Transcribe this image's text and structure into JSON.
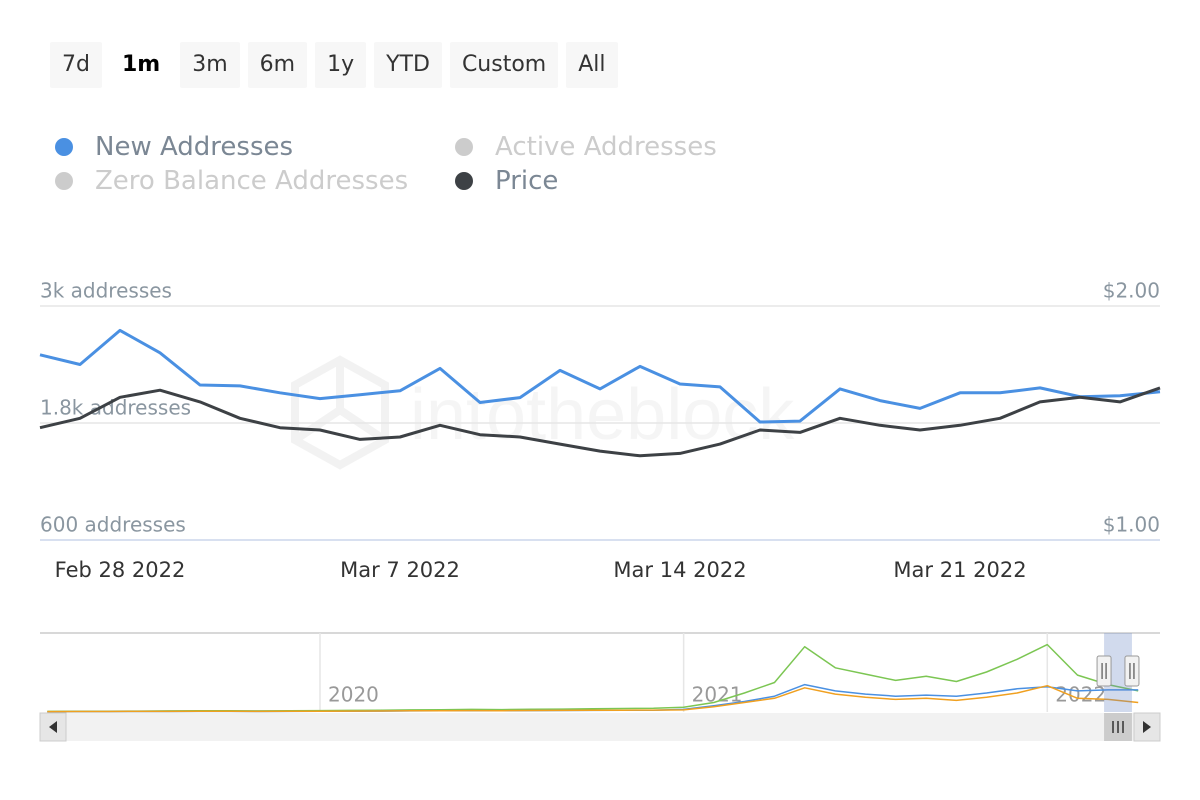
{
  "range_selector": {
    "buttons": [
      "7d",
      "1m",
      "3m",
      "6m",
      "1y",
      "YTD",
      "Custom",
      "All"
    ],
    "selected": 1
  },
  "chart_data": [
    {
      "type": "line",
      "watermark": "intotheblock",
      "x": [
        "2022-02-27",
        "2022-02-28",
        "2022-03-01",
        "2022-03-02",
        "2022-03-03",
        "2022-03-04",
        "2022-03-05",
        "2022-03-06",
        "2022-03-07",
        "2022-03-08",
        "2022-03-09",
        "2022-03-10",
        "2022-03-11",
        "2022-03-12",
        "2022-03-13",
        "2022-03-14",
        "2022-03-15",
        "2022-03-16",
        "2022-03-17",
        "2022-03-18",
        "2022-03-19",
        "2022-03-20",
        "2022-03-21",
        "2022-03-22",
        "2022-03-23",
        "2022-03-24",
        "2022-03-25",
        "2022-03-26",
        "2022-03-27"
      ],
      "xticks": [
        {
          "value": "2022-02-28",
          "label": "Feb 28 2022"
        },
        {
          "value": "2022-03-07",
          "label": "Mar 7 2022"
        },
        {
          "value": "2022-03-14",
          "label": "Mar 14 2022"
        },
        {
          "value": "2022-03-21",
          "label": "Mar 21 2022"
        }
      ],
      "ylim": [
        600,
        3000
      ],
      "yticks": [
        {
          "value": 600,
          "label": "600 addresses"
        },
        {
          "value": 1800,
          "label": "1.8k addresses"
        },
        {
          "value": 3000,
          "label": "3k addresses"
        }
      ],
      "y2lim": [
        1,
        2
      ],
      "y2ticks": [
        {
          "value": 1,
          "label": "$1.00"
        },
        {
          "value": 2,
          "label": "$2.00"
        }
      ],
      "grid": true,
      "legend": "top-left",
      "series": [
        {
          "name": "New Addresses",
          "color": "#4a90e2",
          "values": [
            2500,
            2400,
            2750,
            2520,
            2190,
            2180,
            2110,
            2050,
            2090,
            2130,
            2360,
            2010,
            2060,
            2340,
            2150,
            2380,
            2200,
            2170,
            1810,
            1820,
            2150,
            2030,
            1950,
            2110,
            2110,
            2160,
            2070,
            2080,
            2120
          ]
        },
        {
          "name": "Active Addresses",
          "visible": false
        },
        {
          "name": "Zero Balance Addresses",
          "visible": false
        },
        {
          "name": "Price",
          "color": "#3d4145",
          "axis": "y2",
          "values": [
            1.48,
            1.52,
            1.61,
            1.64,
            1.59,
            1.52,
            1.48,
            1.47,
            1.43,
            1.44,
            1.49,
            1.45,
            1.44,
            1.41,
            1.38,
            1.36,
            1.37,
            1.41,
            1.47,
            1.46,
            1.52,
            1.49,
            1.47,
            1.49,
            1.52,
            1.59,
            1.61,
            1.59,
            1.65
          ]
        }
      ]
    },
    {
      "type": "line",
      "x": [
        2019.25,
        2019.333,
        2019.417,
        2019.5,
        2019.583,
        2019.667,
        2019.75,
        2019.833,
        2019.917,
        2020,
        2020.083,
        2020.167,
        2020.25,
        2020.333,
        2020.417,
        2020.5,
        2020.583,
        2020.667,
        2020.75,
        2020.833,
        2020.917,
        2021,
        2021.083,
        2021.167,
        2021.25,
        2021.333,
        2021.417,
        2021.5,
        2021.583,
        2021.667,
        2021.75,
        2021.833,
        2021.917,
        2022,
        2022.083,
        2022.167,
        2022.25
      ],
      "xlim": [
        2019.23,
        2022.31
      ],
      "xticks": [
        2020,
        2021,
        2022
      ],
      "ylim": [
        0,
        7500
      ],
      "series": [
        {
          "color": "#7cc653",
          "values": [
            60,
            70,
            80,
            90,
            100,
            110,
            120,
            100,
            110,
            130,
            150,
            170,
            200,
            220,
            250,
            230,
            260,
            280,
            300,
            330,
            350,
            450,
            900,
            1800,
            2800,
            6200,
            4200,
            3600,
            3000,
            3400,
            2900,
            3800,
            5000,
            6400,
            3500,
            2600,
            2000
          ]
        },
        {
          "color": "#4a90e2",
          "values": [
            30,
            35,
            40,
            45,
            50,
            55,
            60,
            50,
            55,
            65,
            75,
            85,
            100,
            110,
            120,
            115,
            130,
            140,
            150,
            165,
            175,
            250,
            600,
            1000,
            1500,
            2600,
            2000,
            1700,
            1500,
            1600,
            1500,
            1800,
            2200,
            2400,
            2000,
            2100,
            2100
          ]
        },
        {
          "color": "#f0a020",
          "values": [
            40,
            45,
            50,
            55,
            60,
            65,
            70,
            60,
            65,
            75,
            85,
            95,
            110,
            120,
            130,
            125,
            140,
            150,
            160,
            175,
            185,
            200,
            500,
            900,
            1300,
            2300,
            1700,
            1400,
            1200,
            1300,
            1100,
            1400,
            1800,
            2500,
            1300,
            1200,
            900
          ]
        }
      ]
    }
  ]
}
